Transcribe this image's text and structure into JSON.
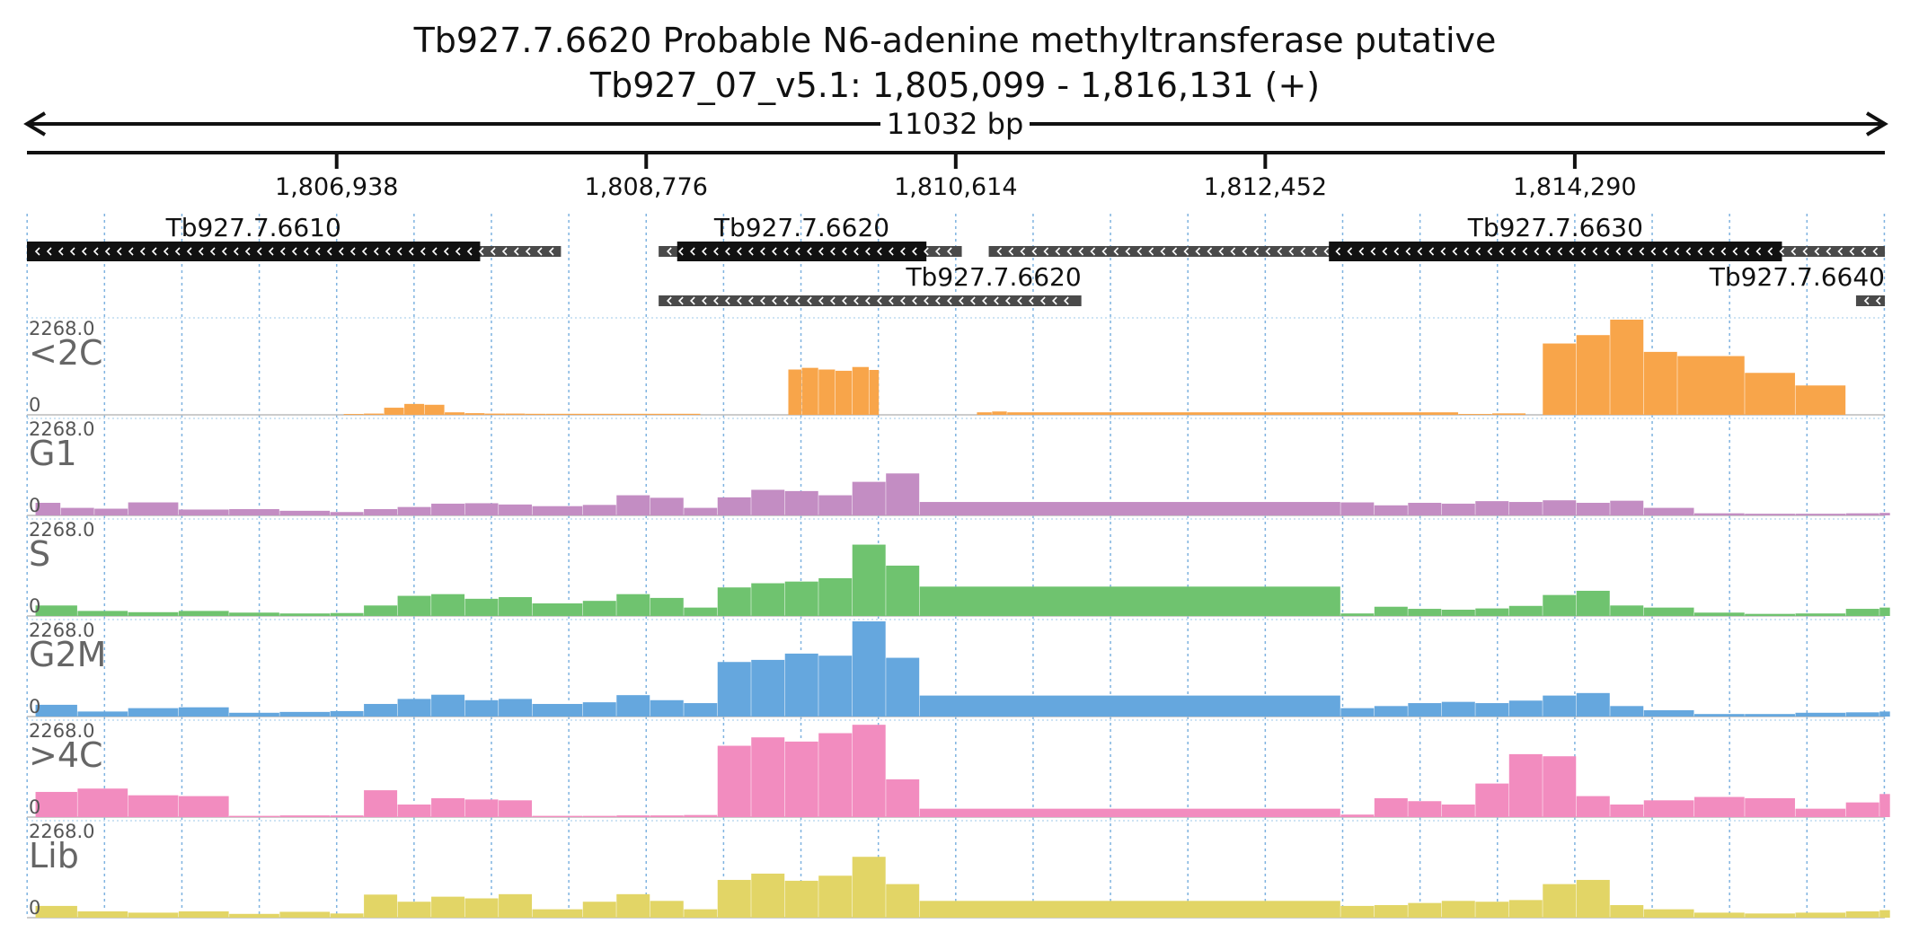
{
  "title": "Tb927.7.6620  Probable N6-adenine methyltransferase  putative",
  "region_label": "Tb927_07_v5.1: 1,805,099 - 1,816,131 (+)",
  "span_label": "11032 bp",
  "region": {
    "start": 1805099,
    "end": 1816131,
    "strand": "+"
  },
  "axis_ticks": [
    {
      "pos": 1806938,
      "label": "1,806,938"
    },
    {
      "pos": 1808776,
      "label": "1,808,776"
    },
    {
      "pos": 1810614,
      "label": "1,810,614"
    },
    {
      "pos": 1812452,
      "label": "1,812,452"
    },
    {
      "pos": 1814290,
      "label": "1,814,290"
    }
  ],
  "genes": [
    {
      "name": "Tb927.7.6610",
      "label_side": "center",
      "row": 0,
      "transcript": [
        1805099,
        1808270
      ],
      "cds": [
        1805099,
        1807790
      ]
    },
    {
      "name": "Tb927.7.6620",
      "label_side": "center",
      "row": 0,
      "transcript": [
        1808850,
        1810650
      ],
      "cds": [
        1808960,
        1810440
      ]
    },
    {
      "name": "Tb927.7.6630",
      "label_side": "center",
      "row": 0,
      "transcript": [
        1810810,
        1816131
      ],
      "cds": [
        1812830,
        1815520
      ]
    },
    {
      "name": "Tb927.7.6620",
      "label_side": "right",
      "row": 1,
      "transcript": [
        1808850,
        1811360
      ]
    },
    {
      "name": "Tb927.7.6640",
      "label_side": "right",
      "row": 1,
      "transcript": [
        1815960,
        1816131
      ],
      "cds": [
        1816131,
        1816131
      ]
    }
  ],
  "tracks": [
    {
      "name": "<2C",
      "color": "#f8a54a",
      "max_label": "2268.0",
      "zero_label": "0",
      "x": [
        1806980,
        1807100,
        1807220,
        1807340,
        1807460,
        1807580,
        1807700,
        1807820,
        1807940,
        1808060,
        1808180,
        1809100,
        1809200,
        1809300,
        1809400,
        1809500,
        1809600,
        1809620,
        1809700,
        1809800,
        1809900,
        1810000,
        1810100,
        1810160,
        1810740,
        1810830,
        1810920,
        1813600,
        1813800,
        1814000,
        1814100,
        1814300,
        1814500,
        1814700,
        1814900,
        1815300,
        1815600,
        1815900
      ],
      "values": [
        20,
        30,
        170,
        260,
        240,
        60,
        40,
        30,
        30,
        25,
        25,
        0,
        0,
        0,
        0,
        0,
        0,
        1080,
        1120,
        1080,
        1050,
        1140,
        1070,
        0,
        60,
        80,
        60,
        20,
        35,
        0,
        1700,
        1900,
        2268,
        1500,
        1400,
        1000,
        700,
        0
      ]
    },
    {
      "name": "G1",
      "color": "#c38dc3",
      "max_label": "2268.0",
      "zero_label": "0",
      "x": [
        1805150,
        1805300,
        1805500,
        1805700,
        1806000,
        1806300,
        1806600,
        1806900,
        1807100,
        1807300,
        1807500,
        1807700,
        1807900,
        1808100,
        1808400,
        1808600,
        1808800,
        1809000,
        1809200,
        1809400,
        1809600,
        1809800,
        1810000,
        1810200,
        1810400,
        1812900,
        1813100,
        1813300,
        1813500,
        1813700,
        1813900,
        1814100,
        1814300,
        1814500,
        1814700,
        1815000,
        1815300,
        1815600,
        1815900,
        1816100
      ],
      "values": [
        300,
        180,
        160,
        310,
        140,
        150,
        110,
        80,
        150,
        200,
        280,
        290,
        260,
        220,
        250,
        480,
        420,
        180,
        430,
        610,
        580,
        480,
        800,
        1000,
        320,
        310,
        240,
        300,
        280,
        340,
        320,
        360,
        300,
        350,
        180,
        50,
        40,
        40,
        50,
        60
      ]
    },
    {
      "name": "S",
      "color": "#6fc36f",
      "max_label": "2268.0",
      "zero_label": "0",
      "x": [
        1805150,
        1805400,
        1805700,
        1806000,
        1806300,
        1806600,
        1806900,
        1807100,
        1807300,
        1807500,
        1807700,
        1807900,
        1808100,
        1808400,
        1808600,
        1808800,
        1809000,
        1809200,
        1809400,
        1809600,
        1809800,
        1810000,
        1810200,
        1810400,
        1812900,
        1813100,
        1813300,
        1813500,
        1813700,
        1813900,
        1814100,
        1814300,
        1814500,
        1814700,
        1815000,
        1815300,
        1815600,
        1815900,
        1816100
      ],
      "values": [
        250,
        120,
        90,
        120,
        80,
        60,
        70,
        250,
        480,
        520,
        410,
        450,
        300,
        360,
        520,
        430,
        200,
        680,
        780,
        820,
        900,
        1700,
        1200,
        700,
        60,
        220,
        170,
        150,
        180,
        240,
        500,
        600,
        250,
        200,
        80,
        50,
        60,
        170,
        200
      ]
    },
    {
      "name": "G2M",
      "color": "#65a7de",
      "max_label": "2268.0",
      "zero_label": "0",
      "x": [
        1805150,
        1805400,
        1805700,
        1806000,
        1806300,
        1806600,
        1806900,
        1807100,
        1807300,
        1807500,
        1807700,
        1807900,
        1808100,
        1808400,
        1808600,
        1808800,
        1809000,
        1809200,
        1809400,
        1809600,
        1809800,
        1810000,
        1810200,
        1810400,
        1812900,
        1813100,
        1813300,
        1813500,
        1813700,
        1813900,
        1814100,
        1814300,
        1814500,
        1814700,
        1815000,
        1815300,
        1815600,
        1815900,
        1816100
      ],
      "values": [
        280,
        120,
        200,
        220,
        90,
        110,
        130,
        300,
        420,
        520,
        390,
        420,
        300,
        340,
        510,
        390,
        320,
        1300,
        1350,
        1500,
        1450,
        2268,
        1400,
        500,
        200,
        250,
        320,
        350,
        320,
        380,
        500,
        560,
        250,
        150,
        60,
        60,
        90,
        100,
        120
      ]
    },
    {
      "name": ">4C",
      "color": "#f28cbf",
      "max_label": "2268.0",
      "zero_label": "0",
      "x": [
        1805150,
        1805400,
        1805700,
        1806000,
        1806300,
        1806600,
        1806900,
        1807100,
        1807300,
        1807500,
        1807700,
        1807900,
        1808100,
        1808400,
        1808600,
        1808800,
        1809000,
        1809200,
        1809400,
        1809600,
        1809800,
        1810000,
        1810200,
        1810400,
        1812900,
        1813100,
        1813300,
        1813500,
        1813700,
        1813900,
        1814100,
        1814300,
        1814500,
        1814700,
        1815000,
        1815300,
        1815600,
        1815900,
        1816100
      ],
      "values": [
        600,
        680,
        520,
        500,
        30,
        40,
        40,
        640,
        300,
        450,
        420,
        400,
        30,
        30,
        40,
        40,
        50,
        1700,
        1900,
        1800,
        2000,
        2200,
        900,
        200,
        60,
        450,
        380,
        300,
        800,
        1500,
        1450,
        500,
        300,
        400,
        480,
        450,
        200,
        350,
        550
      ]
    },
    {
      "name": "Lib",
      "color": "#e2d566",
      "max_label": "2268.0",
      "zero_label": "0",
      "x": [
        1805150,
        1805400,
        1805700,
        1806000,
        1806300,
        1806600,
        1806900,
        1807100,
        1807300,
        1807500,
        1807700,
        1807900,
        1808100,
        1808400,
        1808600,
        1808800,
        1809000,
        1809200,
        1809400,
        1809600,
        1809800,
        1810000,
        1810200,
        1810400,
        1812900,
        1813100,
        1813300,
        1813500,
        1813700,
        1813900,
        1814100,
        1814300,
        1814500,
        1814700,
        1815000,
        1815300,
        1815600,
        1815900,
        1816100
      ],
      "values": [
        280,
        150,
        120,
        150,
        90,
        140,
        100,
        550,
        380,
        500,
        460,
        560,
        200,
        380,
        560,
        400,
        200,
        900,
        1050,
        880,
        1000,
        1450,
        800,
        400,
        280,
        300,
        350,
        400,
        380,
        420,
        800,
        900,
        300,
        200,
        120,
        100,
        120,
        150,
        180
      ]
    }
  ]
}
